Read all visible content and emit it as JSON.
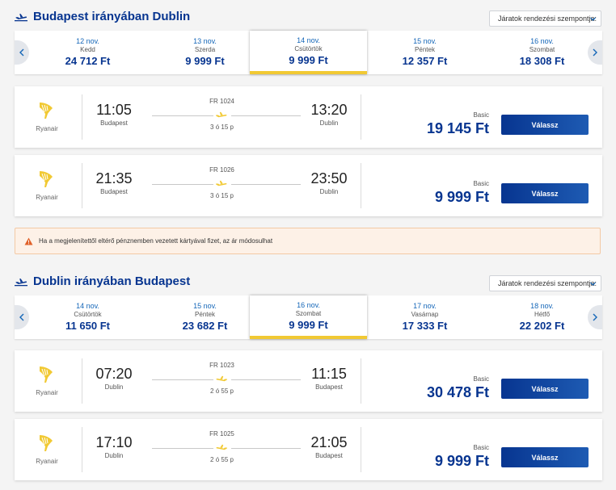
{
  "outbound": {
    "title": "Budapest irányában Dublin",
    "sort_label": "Járatok rendezési szempontja:",
    "dates": [
      {
        "date": "12 nov.",
        "day": "Kedd",
        "price": "24 712 Ft",
        "active": false
      },
      {
        "date": "13 nov.",
        "day": "Szerda",
        "price": "9 999 Ft",
        "active": false
      },
      {
        "date": "14 nov.",
        "day": "Csütörtök",
        "price": "9 999 Ft",
        "active": true
      },
      {
        "date": "15 nov.",
        "day": "Péntek",
        "price": "12 357 Ft",
        "active": false
      },
      {
        "date": "16 nov.",
        "day": "Szombat",
        "price": "18 308 Ft",
        "active": false
      }
    ],
    "flights": [
      {
        "airline": "Ryanair",
        "dep_time": "11:05",
        "dep_city": "Budapest",
        "flight_no": "FR 1024",
        "duration": "3 ó 15 p",
        "arr_time": "13:20",
        "arr_city": "Dublin",
        "fare": "Basic",
        "price": "19 145 Ft",
        "button": "Válassz"
      },
      {
        "airline": "Ryanair",
        "dep_time": "21:35",
        "dep_city": "Budapest",
        "flight_no": "FR 1026",
        "duration": "3 ó 15 p",
        "arr_time": "23:50",
        "arr_city": "Dublin",
        "fare": "Basic",
        "price": "9 999 Ft",
        "button": "Válassz"
      }
    ]
  },
  "warning": {
    "text": "Ha a megjelenítettől eltérő pénznemben vezetett kártyával fizet, az ár módosulhat"
  },
  "return": {
    "title": "Dublin irányában Budapest",
    "sort_label": "Járatok rendezési szempontja:",
    "dates": [
      {
        "date": "14 nov.",
        "day": "Csütörtök",
        "price": "11 650 Ft",
        "active": false
      },
      {
        "date": "15 nov.",
        "day": "Péntek",
        "price": "23 682 Ft",
        "active": false
      },
      {
        "date": "16 nov.",
        "day": "Szombat",
        "price": "9 999 Ft",
        "active": true
      },
      {
        "date": "17 nov.",
        "day": "Vasárnap",
        "price": "17 333 Ft",
        "active": false
      },
      {
        "date": "18 nov.",
        "day": "Hétfő",
        "price": "22 202 Ft",
        "active": false
      }
    ],
    "flights": [
      {
        "airline": "Ryanair",
        "dep_time": "07:20",
        "dep_city": "Dublin",
        "flight_no": "FR 1023",
        "duration": "2 ó 55 p",
        "arr_time": "11:15",
        "arr_city": "Budapest",
        "fare": "Basic",
        "price": "30 478 Ft",
        "button": "Válassz"
      },
      {
        "airline": "Ryanair",
        "dep_time": "17:10",
        "dep_city": "Dublin",
        "flight_no": "FR 1025",
        "duration": "2 ó 55 p",
        "arr_time": "21:05",
        "arr_city": "Budapest",
        "fare": "Basic",
        "price": "9 999 Ft",
        "button": "Válassz"
      }
    ]
  },
  "icons": {
    "section_plane": "plane-icon",
    "route_plane": "plane-icon",
    "airline_logo": "ryanair-harp-logo",
    "warning": "warning-triangle-icon",
    "strip_left": "chevron-left-icon",
    "strip_right": "chevron-right-icon",
    "sort_chevron": "chevron-down-icon"
  },
  "colors": {
    "brand_blue": "#073590",
    "accent_yellow": "#f1c933",
    "button_gradient_end": "#1e5bb3",
    "warning_bg": "#fdf1e7",
    "warning_icon": "#e0612a"
  }
}
